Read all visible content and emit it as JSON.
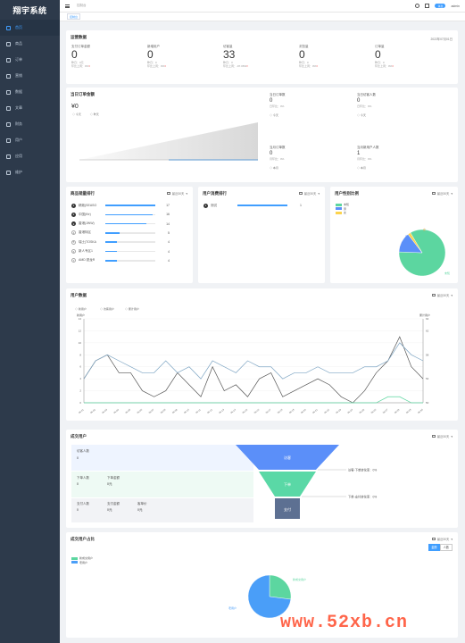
{
  "app": {
    "title": "翔宇系统"
  },
  "sidebar": {
    "items": [
      {
        "label": "首页",
        "icon": "home-icon",
        "active": true
      },
      {
        "label": "商品",
        "icon": "goods-icon"
      },
      {
        "label": "订单",
        "icon": "order-icon"
      },
      {
        "label": "营销",
        "icon": "marketing-icon"
      },
      {
        "label": "数据",
        "icon": "data-icon"
      },
      {
        "label": "文章",
        "icon": "article-icon"
      },
      {
        "label": "财务",
        "icon": "finance-icon"
      },
      {
        "label": "用户",
        "icon": "user-icon"
      },
      {
        "label": "应用",
        "icon": "app-icon"
      },
      {
        "label": "维护",
        "icon": "maintain-icon"
      }
    ]
  },
  "topbar": {
    "breadcrumb": "控制台",
    "badge": "消息",
    "user": "admin"
  },
  "tags": {
    "home": "控制台"
  },
  "overview": {
    "title": "运营数据",
    "date": "2022年07月01日",
    "stats": [
      {
        "label": "支付订单金额",
        "value": "0",
        "yesterday": "昨日：0元",
        "compare": "环比上周：0%",
        "arrow": "▾"
      },
      {
        "label": "新增用户",
        "value": "0",
        "yesterday": "昨日：0",
        "compare": "环比上周：0%",
        "arrow": "▾"
      },
      {
        "label": "访客量",
        "value": "33",
        "yesterday": "昨日：3",
        "compare": "环比上周：-97.06%",
        "arrow": "▾"
      },
      {
        "label": "浏览量",
        "value": "0",
        "yesterday": "昨日：0",
        "compare": "环比上周：0%",
        "arrow": "▾"
      },
      {
        "label": "订单量",
        "value": "0",
        "yesterday": "昨日：0",
        "compare": "环比上周：0%",
        "arrow": "▾"
      }
    ]
  },
  "today": {
    "title": "当日订单金额",
    "value": "¥0",
    "legend": [
      "今天",
      "昨天"
    ],
    "side": [
      {
        "label": "当日订单数",
        "value": "0",
        "sub": "日环比：0%",
        "legend": "今天"
      },
      {
        "label": "当日访客人数",
        "value": "0",
        "sub": "日环比：0%",
        "legend": "今天"
      },
      {
        "label": "当月订单数",
        "value": "0",
        "sub": "月环比：0%",
        "legend": "本月"
      },
      {
        "label": "当月新用户人数",
        "value": "1",
        "sub": "月环比：0%",
        "legend": "本月"
      }
    ]
  },
  "product_rank": {
    "title": "商品销量排行",
    "filter": "最近30天",
    "items": [
      {
        "rank": "1",
        "name": "精致(SEASO",
        "value": "17",
        "ratio": 1.0
      },
      {
        "rank": "2",
        "name": "中国(Ktr)",
        "value": "16",
        "ratio": 0.94
      },
      {
        "rank": "3",
        "name": "香港(JWW)",
        "value": "14",
        "ratio": 0.82
      },
      {
        "rank": "4",
        "name": "香港特区",
        "value": "5",
        "ratio": 0.29
      },
      {
        "rank": "5",
        "name": "瑞士(TOSKA",
        "value": "4",
        "ratio": 0.24
      },
      {
        "rank": "6",
        "name": "新人专区1",
        "value": "4",
        "ratio": 0.24
      },
      {
        "rank": "7",
        "name": "AMD 锐龙R",
        "value": "4",
        "ratio": 0.24
      }
    ]
  },
  "user_rank": {
    "title": "用户消费排行",
    "filter": "最近30天",
    "items": [
      {
        "rank": "1",
        "name": "测试",
        "value": "1",
        "ratio": 1.0
      }
    ]
  },
  "gender": {
    "title": "用户性别比例",
    "filter": "最近30天",
    "legend": [
      {
        "name": "未知",
        "color": "#5cd6a0"
      },
      {
        "name": "男",
        "color": "#5b8ff9"
      },
      {
        "name": "女",
        "color": "#fcd34d"
      }
    ],
    "labels": {
      "unknown": "未知",
      "male": "男",
      "female": "女"
    }
  },
  "user_data": {
    "title": "用户数据",
    "filter": "最近30天",
    "left_axis_label": "新用户",
    "right_axis_label": "累计用户"
  },
  "funnel": {
    "title": "成交用户",
    "filter": "最近30天",
    "visitor_label": "访客人数",
    "visitor_value": "0",
    "order_count_label": "下单人数",
    "order_count_value": "0",
    "order_amount_label": "下单金额",
    "order_amount_value": "0元",
    "pay_count_label": "支付人数",
    "pay_count_value": "0",
    "pay_amount_label": "支付金额",
    "pay_amount_value": "0元",
    "unit_label": "客单价",
    "unit_value": "0元",
    "stage1": "访客",
    "stage2": "下单",
    "stage3": "支付",
    "rate1": "访客-下单转化率：0%",
    "rate2": "下单-支付转化率：0%"
  },
  "deal_ratio": {
    "title": "成交用户占比",
    "filter": "最近30天",
    "toggle_active": "金额",
    "toggle_other": "人数",
    "legend": [
      {
        "name": "新成交用户",
        "color": "#5cd6a0"
      },
      {
        "name": "老用户",
        "color": "#4a9ef8"
      }
    ],
    "label_new": "新成交用户",
    "label_old": "老用户"
  },
  "watermark": "www.52xb.cn",
  "chart_data": [
    {
      "type": "area",
      "title": "当日订单金额",
      "series": [
        {
          "name": "今天",
          "values": [
            0,
            0,
            0,
            0,
            0,
            0,
            0
          ]
        },
        {
          "name": "昨天",
          "values": [
            0,
            0,
            0,
            0,
            0,
            0,
            0
          ]
        }
      ]
    },
    {
      "type": "line",
      "title": "用户数据",
      "x": [
        "06-01",
        "06-02",
        "06-03",
        "06-04",
        "06-05",
        "06-06",
        "06-07",
        "06-08",
        "06-09",
        "06-10",
        "06-11",
        "06-12",
        "06-13",
        "06-14",
        "06-15",
        "06-16",
        "06-17",
        "06-18",
        "06-19",
        "06-20",
        "06-21",
        "06-22",
        "06-23",
        "06-24",
        "06-25",
        "06-26",
        "06-27",
        "06-28",
        "06-29",
        "06-30"
      ],
      "left_ylim": [
        0,
        14
      ],
      "left_ticks": [
        0,
        2,
        4,
        6,
        8,
        10,
        12,
        14
      ],
      "right_ylim": [
        50,
        64
      ],
      "right_ticks": [
        50,
        54,
        58,
        62,
        64
      ],
      "series": [
        {
          "name": "新用户",
          "axis": "left",
          "values": [
            4,
            7,
            8,
            5,
            5,
            2,
            1,
            2,
            5,
            3,
            1,
            6,
            2,
            3,
            1,
            4,
            5,
            1,
            2,
            3,
            4,
            3,
            1,
            0,
            2,
            5,
            7,
            11,
            6,
            4
          ]
        },
        {
          "name": "访客用户",
          "axis": "left",
          "values": [
            4,
            7,
            8,
            7,
            6,
            5,
            5,
            7,
            5,
            6,
            4,
            7,
            6,
            5,
            7,
            6,
            6,
            4,
            5,
            5,
            6,
            5,
            5,
            5,
            6,
            6,
            7,
            10,
            8,
            7
          ]
        },
        {
          "name": "累计用户",
          "axis": "right",
          "values": [
            50,
            50,
            50,
            50,
            50,
            50,
            50,
            50,
            50,
            50,
            50,
            50,
            50,
            50,
            50,
            50,
            50,
            50,
            50,
            50,
            50,
            50,
            50,
            50,
            50,
            50,
            51,
            51,
            50,
            50
          ]
        }
      ]
    },
    {
      "type": "pie",
      "title": "用户性别比例",
      "categories": [
        "未知",
        "男",
        "女"
      ],
      "values": [
        84,
        14,
        2
      ]
    },
    {
      "type": "pie",
      "title": "成交用户占比",
      "categories": [
        "新成交用户",
        "老用户"
      ],
      "values": [
        27,
        73
      ]
    }
  ]
}
